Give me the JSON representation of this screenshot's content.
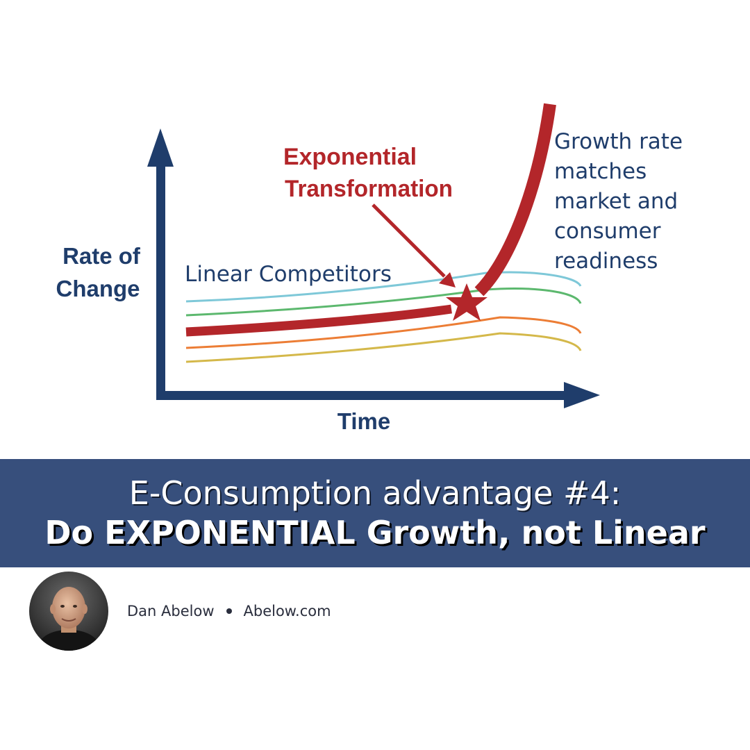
{
  "diagram": {
    "y_axis_label_line1": "Rate of",
    "y_axis_label_line2": "Change",
    "x_axis_label": "Time",
    "linear_label": "Linear Competitors",
    "exponential_label_line1": "Exponential",
    "exponential_label_line2": "Transformation",
    "growth_note": [
      "Growth rate",
      "matches",
      "market and",
      "consumer",
      "readiness"
    ],
    "colors": {
      "axis": "#1f3d6b",
      "exponential": "#b3262a",
      "cyan": "#7ec8d8",
      "green": "#5cb86e",
      "orange": "#ec7d35",
      "yellow": "#d4b84a"
    },
    "icons": [
      "star-icon",
      "arrow-icon"
    ]
  },
  "banner": {
    "line1": "E-Consumption advantage #4:",
    "line2": "Do EXPONENTIAL Growth, not Linear"
  },
  "author": {
    "name": "Dan Abelow",
    "site": "Abelow.com"
  }
}
